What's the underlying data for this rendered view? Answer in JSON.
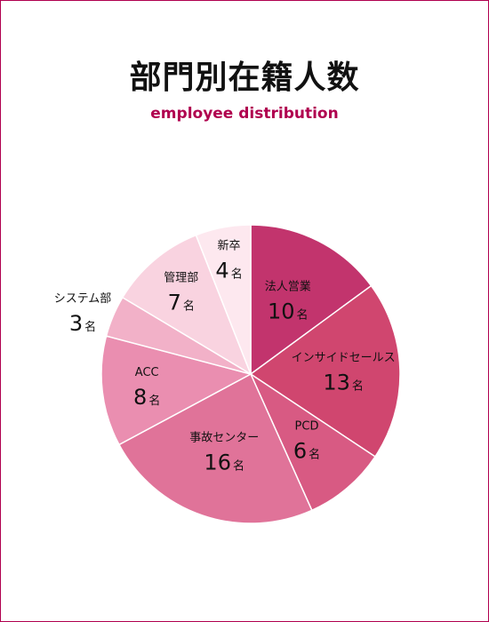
{
  "header": {
    "title": "部門別在籍人数",
    "subtitle": "employee distribution"
  },
  "colors": {
    "border": "#b0004f",
    "accent": "#b0004f"
  },
  "chart_data": {
    "type": "pie",
    "unit": "名",
    "slices": [
      {
        "label": "法人営業",
        "value": 10,
        "color": "#c2346d"
      },
      {
        "label": "インサイドセールス",
        "value": 13,
        "color": "#d0466f"
      },
      {
        "label": "PCD",
        "value": 6,
        "color": "#d85a83"
      },
      {
        "label": "事故センター",
        "value": 16,
        "color": "#e07399"
      },
      {
        "label": "ACC",
        "value": 8,
        "color": "#ea8eb0"
      },
      {
        "label": "システム部",
        "value": 3,
        "color": "#f2b1c8"
      },
      {
        "label": "管理部",
        "value": 7,
        "color": "#f9d3e0"
      },
      {
        "label": "新卒",
        "value": 4,
        "color": "#fde8ef"
      }
    ]
  }
}
